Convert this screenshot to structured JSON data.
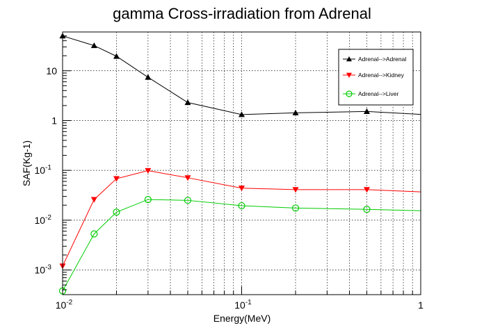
{
  "chart_data": {
    "type": "line",
    "title": "gamma Cross-irradiation from Adrenal",
    "xlabel": "Energy(MeV)",
    "ylabel": "SAF(Kg-1)",
    "x_scale": "log",
    "y_scale": "log",
    "xlim": [
      0.01,
      1
    ],
    "ylim": [
      0.00032,
      60
    ],
    "grid": true,
    "legend_position": "top-right",
    "x_ticks": [
      {
        "base": "10",
        "exp": "-2",
        "value": 0.01
      },
      {
        "base": "10",
        "exp": "-1",
        "value": 0.1
      },
      {
        "base": "1",
        "exp": "",
        "value": 1
      }
    ],
    "y_ticks": [
      {
        "base": "10",
        "exp": "-3",
        "value": 0.001
      },
      {
        "base": "10",
        "exp": "-2",
        "value": 0.01
      },
      {
        "base": "10",
        "exp": "-1",
        "value": 0.1
      },
      {
        "base": "1",
        "exp": "",
        "value": 1
      },
      {
        "base": "10",
        "exp": "",
        "value": 10
      }
    ],
    "x": [
      0.01,
      0.015,
      0.02,
      0.03,
      0.05,
      0.1,
      0.2,
      0.5,
      1
    ],
    "series": [
      {
        "name": "Adrenal-->Adrenal",
        "color": "#000000",
        "marker": "triangle-up",
        "values": [
          50,
          32,
          19.5,
          7.4,
          2.3,
          1.32,
          1.43,
          1.52,
          1.33
        ]
      },
      {
        "name": "Adrenal-->Kidney",
        "color": "#ff0000",
        "marker": "triangle-down",
        "values": [
          0.0012,
          0.026,
          0.068,
          0.099,
          0.071,
          0.044,
          0.041,
          0.041,
          0.037
        ]
      },
      {
        "name": "Adrenal-->Liver",
        "color": "#00cc00",
        "marker": "open-circle",
        "values": [
          0.00038,
          0.0053,
          0.0145,
          0.026,
          0.025,
          0.0195,
          0.0175,
          0.0165,
          0.0155
        ]
      }
    ]
  }
}
